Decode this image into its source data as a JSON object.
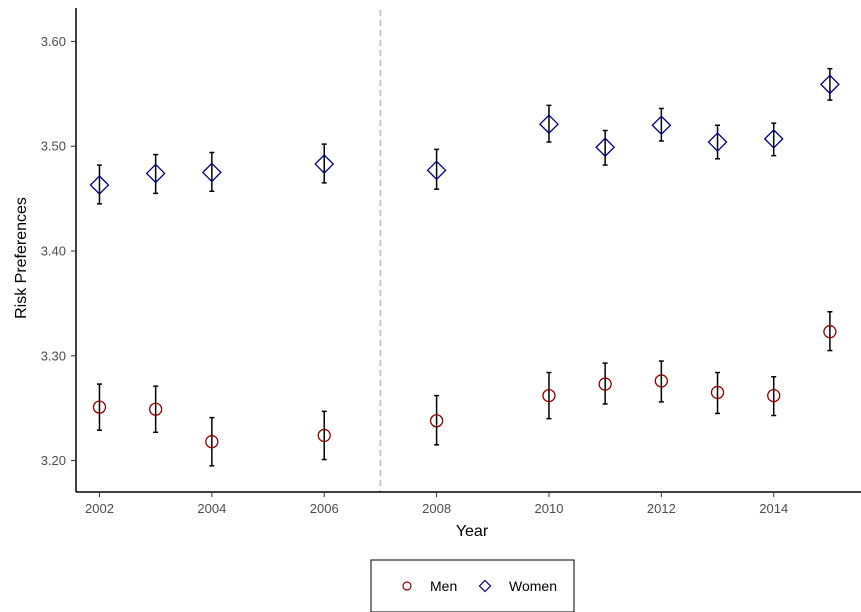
{
  "chart_data": {
    "type": "scatter",
    "xlabel": "Year",
    "ylabel": "Risk Preferences",
    "xlim": [
      2001.6,
      2015.5
    ],
    "ylim": [
      3.17,
      3.63
    ],
    "x_ticks": [
      2002,
      2004,
      2006,
      2008,
      2010,
      2012,
      2014
    ],
    "x_tick_labels": [
      "2002",
      "2004",
      "2006",
      "2008",
      "2010",
      "2012",
      "2014"
    ],
    "y_ticks": [
      3.2,
      3.3,
      3.4,
      3.5,
      3.6
    ],
    "y_tick_labels": [
      "3.20",
      "3.30",
      "3.40",
      "3.50",
      "3.60"
    ],
    "reference_line": {
      "x": 2007,
      "style": "dashed",
      "color": "#bdbdbd"
    },
    "grid": false,
    "legend_position": "bottom",
    "series": [
      {
        "name": "Men",
        "marker": "circle",
        "color": "#8b0000",
        "points": [
          {
            "x": 2002,
            "y": 3.251,
            "lo": 3.229,
            "hi": 3.273
          },
          {
            "x": 2003,
            "y": 3.249,
            "lo": 3.227,
            "hi": 3.271
          },
          {
            "x": 2004,
            "y": 3.218,
            "lo": 3.195,
            "hi": 3.241
          },
          {
            "x": 2006,
            "y": 3.224,
            "lo": 3.201,
            "hi": 3.247
          },
          {
            "x": 2008,
            "y": 3.238,
            "lo": 3.215,
            "hi": 3.262
          },
          {
            "x": 2010,
            "y": 3.262,
            "lo": 3.24,
            "hi": 3.284
          },
          {
            "x": 2011,
            "y": 3.273,
            "lo": 3.254,
            "hi": 3.293
          },
          {
            "x": 2012,
            "y": 3.276,
            "lo": 3.256,
            "hi": 3.295
          },
          {
            "x": 2013,
            "y": 3.265,
            "lo": 3.245,
            "hi": 3.284
          },
          {
            "x": 2014,
            "y": 3.262,
            "lo": 3.243,
            "hi": 3.28
          },
          {
            "x": 2015,
            "y": 3.323,
            "lo": 3.305,
            "hi": 3.342
          }
        ]
      },
      {
        "name": "Women",
        "marker": "diamond",
        "color": "#000080",
        "points": [
          {
            "x": 2002,
            "y": 3.463,
            "lo": 3.445,
            "hi": 3.482
          },
          {
            "x": 2003,
            "y": 3.474,
            "lo": 3.455,
            "hi": 3.492
          },
          {
            "x": 2004,
            "y": 3.475,
            "lo": 3.457,
            "hi": 3.494
          },
          {
            "x": 2006,
            "y": 3.483,
            "lo": 3.465,
            "hi": 3.502
          },
          {
            "x": 2008,
            "y": 3.477,
            "lo": 3.459,
            "hi": 3.497
          },
          {
            "x": 2010,
            "y": 3.521,
            "lo": 3.504,
            "hi": 3.539
          },
          {
            "x": 2011,
            "y": 3.499,
            "lo": 3.482,
            "hi": 3.515
          },
          {
            "x": 2012,
            "y": 3.52,
            "lo": 3.505,
            "hi": 3.536
          },
          {
            "x": 2013,
            "y": 3.504,
            "lo": 3.488,
            "hi": 3.52
          },
          {
            "x": 2014,
            "y": 3.507,
            "lo": 3.491,
            "hi": 3.522
          },
          {
            "x": 2015,
            "y": 3.559,
            "lo": 3.544,
            "hi": 3.574
          }
        ]
      }
    ]
  }
}
